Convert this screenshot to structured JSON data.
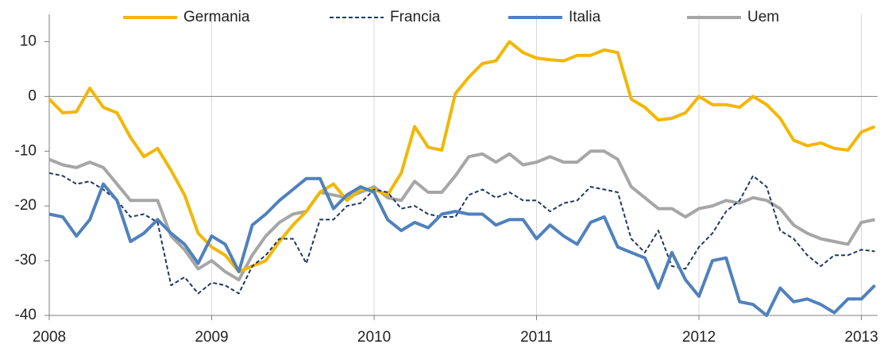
{
  "chart_data": {
    "type": "line",
    "x": [
      2008,
      2008.083,
      2008.167,
      2008.25,
      2008.333,
      2008.417,
      2008.5,
      2008.583,
      2008.667,
      2008.75,
      2008.833,
      2008.917,
      2009,
      2009.083,
      2009.167,
      2009.25,
      2009.333,
      2009.417,
      2009.5,
      2009.583,
      2009.667,
      2009.75,
      2009.833,
      2009.917,
      2010,
      2010.083,
      2010.167,
      2010.25,
      2010.333,
      2010.417,
      2010.5,
      2010.583,
      2010.667,
      2010.75,
      2010.833,
      2010.917,
      2011,
      2011.083,
      2011.167,
      2011.25,
      2011.333,
      2011.417,
      2011.5,
      2011.583,
      2011.667,
      2011.75,
      2011.833,
      2011.917,
      2012,
      2012.083,
      2012.167,
      2012.25,
      2012.333,
      2012.417,
      2012.5,
      2012.583,
      2012.667,
      2012.75,
      2012.833,
      2012.917,
      2013,
      2013.083
    ],
    "series": [
      {
        "name": "Germania",
        "color": "#f2b705",
        "style": "solid",
        "values": [
          -0.5,
          -3,
          -2.8,
          1.5,
          -2,
          -3,
          -7.5,
          -11,
          -9.5,
          -13.5,
          -18,
          -25,
          -27.5,
          -29,
          -32,
          -31,
          -30,
          -26.5,
          -23.5,
          -21,
          -17.5,
          -16,
          -19,
          -17,
          -17,
          -18,
          -14,
          -5.5,
          -9.3,
          -9.8,
          0.5,
          3.5,
          6,
          6.5,
          10,
          8,
          7,
          6.7,
          6.5,
          7.5,
          7.5,
          8.5,
          8,
          -0.5,
          -2,
          -4.3,
          -4,
          -3,
          0,
          -1.5,
          -1.5,
          -2,
          0,
          -1.5,
          -4,
          -8,
          -9,
          -8.5,
          -9.5,
          -9.8,
          -6.5,
          -5.5
        ]
      },
      {
        "name": "Francia",
        "color": "#1f3864",
        "style": "dashed",
        "values": [
          -14,
          -14.5,
          -16,
          -15.5,
          -17,
          -19,
          -22,
          -21.5,
          -23,
          -34.5,
          -33,
          -36,
          -34,
          -34.5,
          -36,
          -31,
          -29,
          -26,
          -26,
          -30.5,
          -22.5,
          -22.5,
          -20,
          -19.5,
          -17,
          -17.5,
          -20.5,
          -20,
          -21.5,
          -22,
          -22,
          -18,
          -17,
          -18.5,
          -17.5,
          -19,
          -19,
          -21,
          -19.5,
          -19,
          -16.5,
          -17,
          -17.5,
          -26,
          -28.5,
          -24.5,
          -31,
          -31.5,
          -27.5,
          -25,
          -21,
          -19,
          -14.5,
          -16.5,
          -24.5,
          -26,
          -29,
          -31,
          -29,
          -29,
          -28,
          -28.3
        ]
      },
      {
        "name": "Italia",
        "color": "#4f81bd",
        "style": "solid",
        "values": [
          -21.5,
          -22,
          -25.5,
          -22.5,
          -16,
          -19,
          -26.5,
          -25,
          -22.5,
          -25,
          -27,
          -30.5,
          -25.5,
          -27,
          -32,
          -23.5,
          -21.5,
          -19,
          -17,
          -15,
          -15,
          -20.5,
          -18,
          -16.5,
          -17.5,
          -22.5,
          -24.5,
          -23,
          -24,
          -21.5,
          -21,
          -21.5,
          -21.5,
          -23.5,
          -22.5,
          -22.5,
          -26,
          -23.5,
          -25.5,
          -27,
          -23,
          -22,
          -27.5,
          -28.5,
          -29.5,
          -35,
          -28.5,
          -33.5,
          -36.5,
          -30,
          -29.5,
          -37.5,
          -38,
          -40,
          -35,
          -37.5,
          -37,
          -38,
          -39.5,
          -37,
          -37,
          -34.5
        ]
      },
      {
        "name": "Uem",
        "color": "#a6a6a6",
        "style": "solid",
        "values": [
          -11.5,
          -12.5,
          -13,
          -12,
          -13,
          -16,
          -19,
          -19,
          -19,
          -25.5,
          -28,
          -31.5,
          -30,
          -32,
          -33.5,
          -29,
          -25.5,
          -23,
          -21.5,
          -21,
          -17.5,
          -18,
          -18.5,
          -17.5,
          -16.5,
          -18.5,
          -19,
          -15.5,
          -17.5,
          -17.5,
          -14.5,
          -11,
          -10.5,
          -12,
          -10.5,
          -12.5,
          -12,
          -11,
          -12,
          -12,
          -10,
          -10,
          -11.5,
          -16.5,
          -18.5,
          -20.5,
          -20.5,
          -22,
          -20.5,
          -20,
          -19,
          -19.5,
          -18.5,
          -19,
          -20.5,
          -23.5,
          -25,
          -26,
          -26.5,
          -27,
          -23,
          -22.5
        ]
      }
    ],
    "xlim": [
      2008,
      2013.1
    ],
    "xticks": [
      2008,
      2009,
      2010,
      2011,
      2012,
      2013
    ],
    "ylim": [
      -40,
      15
    ],
    "yticks": [
      -40,
      -30,
      -20,
      -10,
      0,
      10
    ],
    "grid": "x",
    "legend": "top"
  }
}
